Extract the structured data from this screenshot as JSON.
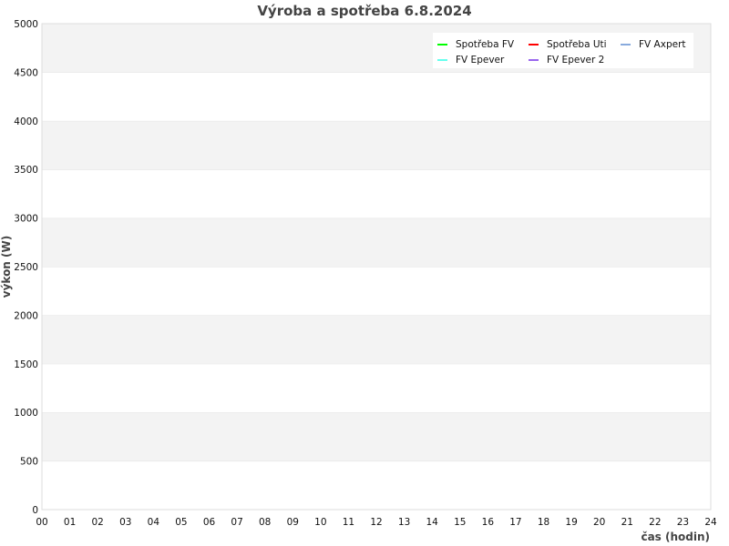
{
  "chart_data": {
    "type": "line",
    "title": "Výroba a spotřeba 6.8.2024",
    "xlabel": "čas (hodin)",
    "ylabel": "výkon (W)",
    "xlim": [
      0,
      24
    ],
    "ylim": [
      0,
      5000
    ],
    "x_ticks": [
      "00",
      "01",
      "02",
      "03",
      "04",
      "05",
      "06",
      "07",
      "08",
      "09",
      "10",
      "11",
      "12",
      "13",
      "14",
      "15",
      "16",
      "17",
      "18",
      "19",
      "20",
      "21",
      "22",
      "23",
      "24"
    ],
    "y_ticks": [
      "0",
      "500",
      "1000",
      "1500",
      "2000",
      "2500",
      "3000",
      "3500",
      "4000",
      "4500",
      "5000"
    ],
    "grid": true,
    "banded_background": true,
    "legend_position": "top-right",
    "series": [
      {
        "name": "Spotřeba FV",
        "color": "#00ff00",
        "values": []
      },
      {
        "name": "Spotřeba Uti",
        "color": "#ff0000",
        "values": []
      },
      {
        "name": "FV Axpert",
        "color": "#88aadd",
        "values": []
      },
      {
        "name": "FV Epever",
        "color": "#66ffee",
        "values": []
      },
      {
        "name": "FV Epever 2",
        "color": "#9966ee",
        "values": []
      }
    ]
  }
}
